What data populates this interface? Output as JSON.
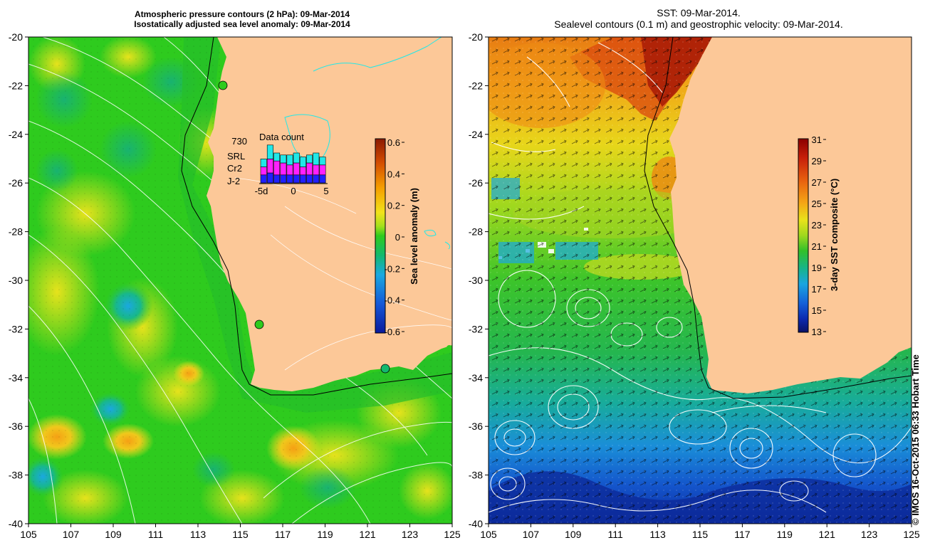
{
  "left_panel": {
    "title_line1": "Atmospheric pressure contours (2 hPa): 09-Mar-2014",
    "title_line2": "Isostatically adjusted sea level anomaly: 09-Mar-2014",
    "colorbar": {
      "label": "Sea level anomaly (m)",
      "ticks": [
        "0.6",
        "0.4",
        "0.2",
        "0",
        "-0.2",
        "-0.4",
        "-0.6"
      ],
      "colors": [
        "#8b1a00",
        "#d24b00",
        "#f59d00",
        "#f2e21a",
        "#a5e01c",
        "#2ecb1e",
        "#13b96e",
        "#1aa9e0",
        "#1458d8",
        "#0a1a9c"
      ]
    },
    "data_count": {
      "title": "Data count",
      "max": "730",
      "legend": [
        {
          "name": "SRL",
          "color": "#20e8e8"
        },
        {
          "name": "Cr2",
          "color": "#ff20ff"
        },
        {
          "name": "J-2",
          "color": "#2020ff"
        }
      ],
      "x_ticks": [
        "-5d",
        "0",
        "5"
      ],
      "bars": [
        {
          "j2": 0.2,
          "cr2": 0.2,
          "srl": 0.2
        },
        {
          "j2": 0.25,
          "cr2": 0.35,
          "srl": 0.35
        },
        {
          "j2": 0.2,
          "cr2": 0.35,
          "srl": 0.2
        },
        {
          "j2": 0.2,
          "cr2": 0.3,
          "srl": 0.2
        },
        {
          "j2": 0.2,
          "cr2": 0.25,
          "srl": 0.25
        },
        {
          "j2": 0.2,
          "cr2": 0.3,
          "srl": 0.25
        },
        {
          "j2": 0.2,
          "cr2": 0.2,
          "srl": 0.25
        },
        {
          "j2": 0.2,
          "cr2": 0.3,
          "srl": 0.2
        },
        {
          "j2": 0.2,
          "cr2": 0.25,
          "srl": 0.3
        },
        {
          "j2": 0.2,
          "cr2": 0.25,
          "srl": 0.2
        }
      ]
    }
  },
  "right_panel": {
    "title_line1": "SST: 09-Mar-2014.",
    "title_line2": "Sealevel contours (0.1 m) and geostrophic velocity: 09-Mar-2014.",
    "colorbar": {
      "label": "3-day SST composite (°C)",
      "ticks": [
        "31",
        "29",
        "27",
        "25",
        "23",
        "21",
        "19",
        "17",
        "15",
        "13"
      ],
      "colors": [
        "#8b0000",
        "#c8200a",
        "#e8630f",
        "#f5a516",
        "#e9e21a",
        "#9fd81e",
        "#31c02a",
        "#16b48a",
        "#1aa5e0",
        "#1460d8",
        "#0c2ab0",
        "#0a1266"
      ]
    }
  },
  "axes": {
    "x_ticks": [
      "105",
      "107",
      "109",
      "111",
      "113",
      "115",
      "117",
      "119",
      "121",
      "123",
      "125"
    ],
    "y_ticks": [
      "-20",
      "-22",
      "-24",
      "-26",
      "-28",
      "-30",
      "-32",
      "-34",
      "-36",
      "-38",
      "-40"
    ]
  },
  "credit": "© IMOS 16-Oct-2015 06:33 Hobart Time",
  "colors": {
    "land": "#fcc898",
    "ocean_green": "#3ccb1c"
  }
}
